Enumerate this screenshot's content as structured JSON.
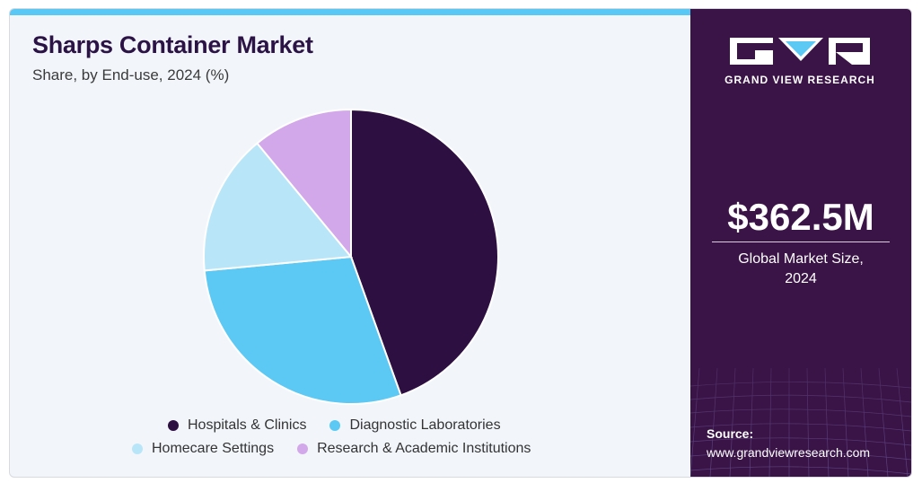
{
  "header": {
    "title": "Sharps Container Market",
    "subtitle": "Share, by End-use, 2024 (%)"
  },
  "chart_data": {
    "type": "pie",
    "categories": [
      "Hospitals & Clinics",
      "Diagnostic Laboratories",
      "Homecare Settings",
      "Research & Academic Institutions"
    ],
    "values": [
      44.5,
      29.0,
      15.5,
      11.0
    ],
    "colors": [
      "#2e0f41",
      "#5cc9f4",
      "#b8e6f8",
      "#d3a8ea"
    ],
    "start_angle_deg": 0,
    "direction": "clockwise",
    "legend_position": "bottom"
  },
  "legend": {
    "items": [
      {
        "label": "Hospitals & Clinics",
        "color": "#2e0f41"
      },
      {
        "label": "Diagnostic Laboratories",
        "color": "#5cc9f4"
      },
      {
        "label": "Homecare Settings",
        "color": "#b8e6f8"
      },
      {
        "label": "Research & Academic Institutions",
        "color": "#d3a8ea"
      }
    ]
  },
  "sidebar": {
    "brand": "GRAND VIEW RESEARCH",
    "market_value": "$362.5M",
    "market_label_line1": "Global Market Size,",
    "market_label_line2": "2024",
    "source_title": "Source:",
    "source_url": "www.grandviewresearch.com",
    "background_color": "#3a1446"
  }
}
